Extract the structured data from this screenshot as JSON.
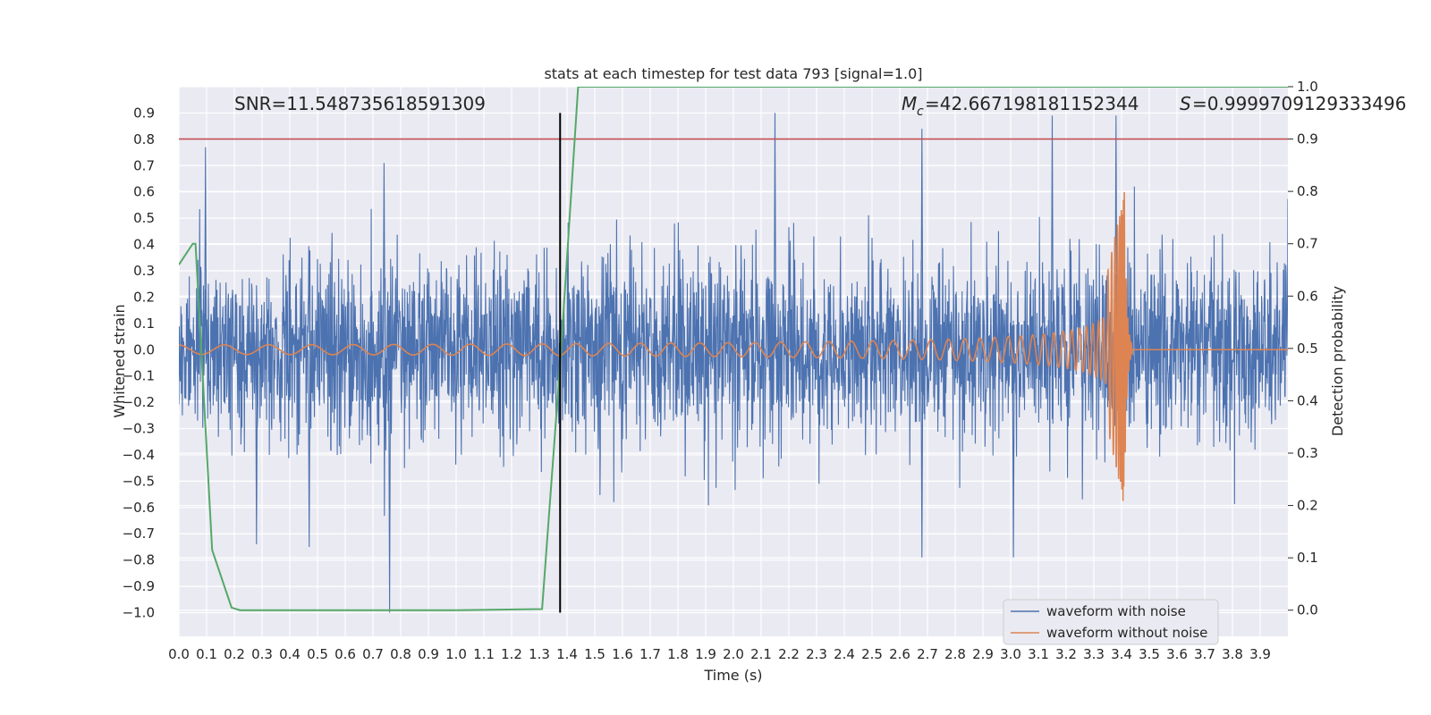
{
  "chart_data": {
    "type": "line",
    "title": "stats at each timestep for test data 793 [signal=1.0]",
    "xlabel": "Time (s)",
    "ylabel": "Whitened strain",
    "ylabel_right": "Detection probability",
    "xlim": [
      0.0,
      4.0
    ],
    "ylim": [
      -1.09,
      1.0
    ],
    "ylim_right": [
      -0.05,
      1.0
    ],
    "x_ticks": [
      "0.0",
      "0.1",
      "0.2",
      "0.3",
      "0.4",
      "0.5",
      "0.6",
      "0.7",
      "0.8",
      "0.9",
      "1.0",
      "1.1",
      "1.2",
      "1.3",
      "1.4",
      "1.5",
      "1.6",
      "1.7",
      "1.8",
      "1.9",
      "2.0",
      "2.1",
      "2.2",
      "2.3",
      "2.4",
      "2.5",
      "2.6",
      "2.7",
      "2.8",
      "2.9",
      "3.0",
      "3.1",
      "3.2",
      "3.3",
      "3.4",
      "3.5",
      "3.6",
      "3.7",
      "3.8",
      "3.9"
    ],
    "y_ticks": [
      "0.9",
      "0.8",
      "0.7",
      "0.6",
      "0.5",
      "0.4",
      "0.3",
      "0.2",
      "0.1",
      "0.0",
      "−0.1",
      "−0.2",
      "−0.3",
      "−0.4",
      "−0.5",
      "−0.6",
      "−0.7",
      "−0.8",
      "−0.9",
      "−1.0"
    ],
    "y_ticks_right": [
      "1.0",
      "0.9",
      "0.8",
      "0.7",
      "0.6",
      "0.5",
      "0.4",
      "0.3",
      "0.2",
      "0.1",
      "0.0"
    ],
    "grid": true,
    "legend_position": "lower-right",
    "annotations": {
      "snr": "SNR=11.548735618591309",
      "mc": "=42.667198181152344",
      "mc_symbol": "M",
      "mc_sub": "c",
      "s": "=0.9999709129333496",
      "s_symbol": "S"
    },
    "noise_envelope": {
      "typical_amplitude": 0.42,
      "peaks": [
        {
          "x": 0.096,
          "y": 0.77
        },
        {
          "x": 0.76,
          "y": -1.0
        },
        {
          "x": 0.74,
          "y": 0.71
        },
        {
          "x": 2.15,
          "y": 0.9
        },
        {
          "x": 3.15,
          "y": 0.89
        },
        {
          "x": 3.38,
          "y": 0.89
        },
        {
          "x": 2.68,
          "y": 0.84
        },
        {
          "x": 3.01,
          "y": -0.79
        },
        {
          "x": 2.68,
          "y": -0.79
        },
        {
          "x": 0.28,
          "y": -0.74
        },
        {
          "x": 0.47,
          "y": -0.75
        }
      ]
    },
    "chirp": {
      "merger_time": 3.41,
      "peak_amplitude": 0.6,
      "start_amplitude": 0.003
    },
    "series": [
      {
        "name": "waveform with noise",
        "color": "#4c72b0"
      },
      {
        "name": "waveform without noise",
        "color": "#dd8452"
      }
    ],
    "detection_probability": {
      "color": "#55a868",
      "x": [
        0.0,
        0.05,
        0.06,
        0.12,
        0.19,
        0.22,
        0.5,
        1.0,
        1.31,
        1.375,
        1.44,
        2.0,
        3.0,
        4.0
      ],
      "y": [
        0.66,
        0.7,
        0.7,
        0.115,
        0.005,
        0.0,
        0.0,
        0.0,
        0.002,
        0.47,
        1.0,
        1.0,
        1.0,
        1.0
      ]
    },
    "threshold": {
      "axis": "right",
      "value": 0.9,
      "color": "#c44e52"
    },
    "event_marker": {
      "x": 1.375,
      "color": "#000000"
    }
  }
}
